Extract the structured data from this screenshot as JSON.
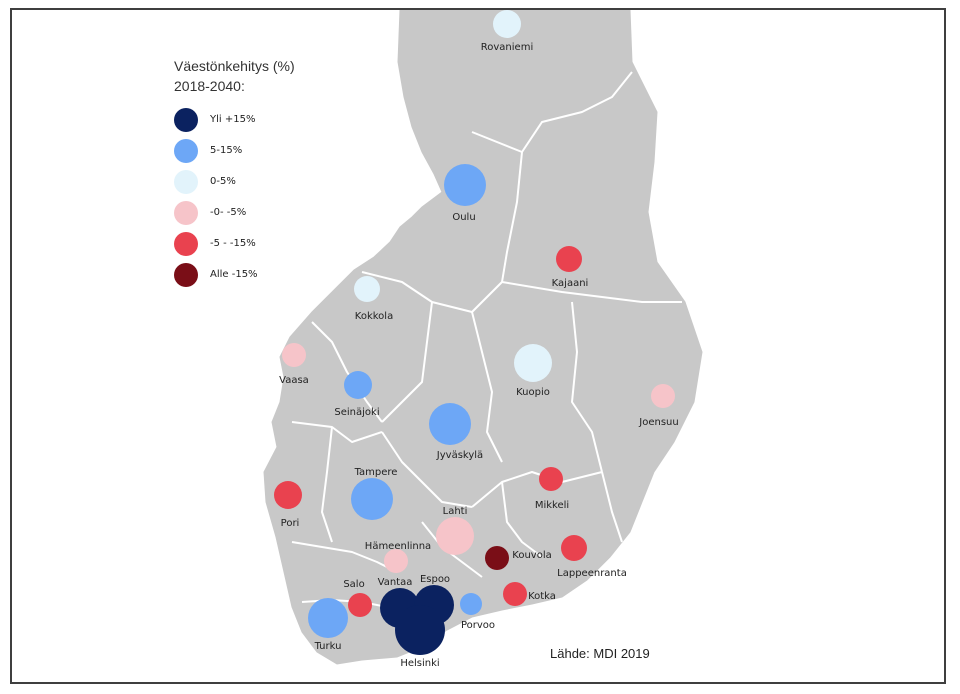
{
  "legend": {
    "title_line1": "Väestönkehitys (%)",
    "title_line2": "2018-2040:",
    "items": [
      {
        "label": "Yli +15%",
        "color": "#0b2260"
      },
      {
        "label": "5-15%",
        "color": "#6da7f6"
      },
      {
        "label": "0-5%",
        "color": "#e2f3fb"
      },
      {
        "label": "-0- -5%",
        "color": "#f6c4c9"
      },
      {
        "label": "-5 - -15%",
        "color": "#e9424f"
      },
      {
        "label": "Alle -15%",
        "color": "#7a0e17"
      }
    ]
  },
  "source": "Lähde: MDI 2019",
  "cities": [
    {
      "name": "Rovaniemi",
      "category": "0-5%"
    },
    {
      "name": "Oulu",
      "category": "5-15%"
    },
    {
      "name": "Kajaani",
      "category": "-5 - -15%"
    },
    {
      "name": "Kokkola",
      "category": "0-5%"
    },
    {
      "name": "Vaasa",
      "category": "-0- -5%"
    },
    {
      "name": "Seinäjoki",
      "category": "5-15%"
    },
    {
      "name": "Kuopio",
      "category": "0-5%"
    },
    {
      "name": "Joensuu",
      "category": "-0- -5%"
    },
    {
      "name": "Jyväskylä",
      "category": "5-15%"
    },
    {
      "name": "Tampere",
      "category": "5-15%"
    },
    {
      "name": "Pori",
      "category": "-5 - -15%"
    },
    {
      "name": "Mikkeli",
      "category": "-5 - -15%"
    },
    {
      "name": "Lahti",
      "category": "-0- -5%"
    },
    {
      "name": "Hämeenlinna",
      "category": "-0- -5%"
    },
    {
      "name": "Kouvola",
      "category": "Alle -15%"
    },
    {
      "name": "Lappeenranta",
      "category": "-5 - -15%"
    },
    {
      "name": "Salo",
      "category": "-5 - -15%"
    },
    {
      "name": "Vantaa",
      "category": "Yli +15%"
    },
    {
      "name": "Espoo",
      "category": "Yli +15%"
    },
    {
      "name": "Kotka",
      "category": "-5 - -15%"
    },
    {
      "name": "Turku",
      "category": "5-15%"
    },
    {
      "name": "Porvoo",
      "category": "5-15%"
    },
    {
      "name": "Helsinki",
      "category": "Yli +15%"
    }
  ]
}
